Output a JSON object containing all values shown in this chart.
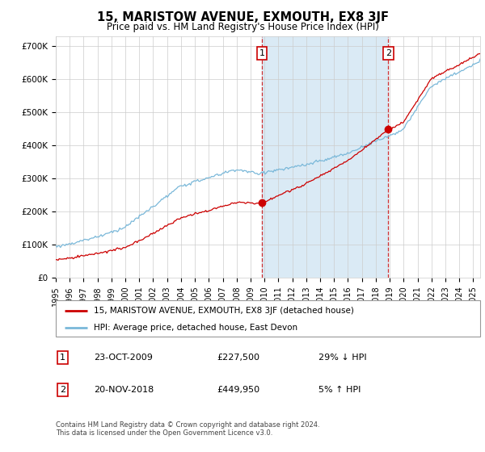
{
  "title": "15, MARISTOW AVENUE, EXMOUTH, EX8 3JF",
  "subtitle": "Price paid vs. HM Land Registry's House Price Index (HPI)",
  "ylabel_ticks": [
    "£0",
    "£100K",
    "£200K",
    "£300K",
    "£400K",
    "£500K",
    "£600K",
    "£700K"
  ],
  "ytick_values": [
    0,
    100000,
    200000,
    300000,
    400000,
    500000,
    600000,
    700000
  ],
  "ylim": [
    0,
    730000
  ],
  "sale1_x": 2009.81,
  "sale1_price": 227500,
  "sale1_date_str": "23-OCT-2009",
  "sale1_pct": "29% ↓ HPI",
  "sale1_price_str": "£227,500",
  "sale2_x": 2018.89,
  "sale2_price": 449950,
  "sale2_date_str": "20-NOV-2018",
  "sale2_pct": "5% ↑ HPI",
  "sale2_price_str": "£449,950",
  "legend_property": "15, MARISTOW AVENUE, EXMOUTH, EX8 3JF (detached house)",
  "legend_hpi": "HPI: Average price, detached house, East Devon",
  "footer1": "Contains HM Land Registry data © Crown copyright and database right 2024.",
  "footer2": "This data is licensed under the Open Government Licence v3.0.",
  "hpi_color": "#7ab8d9",
  "property_color": "#cc0000",
  "shade_color": "#daeaf5",
  "background_color": "#ffffff",
  "grid_color": "#cccccc",
  "xmin": 1995,
  "xmax": 2025.5
}
